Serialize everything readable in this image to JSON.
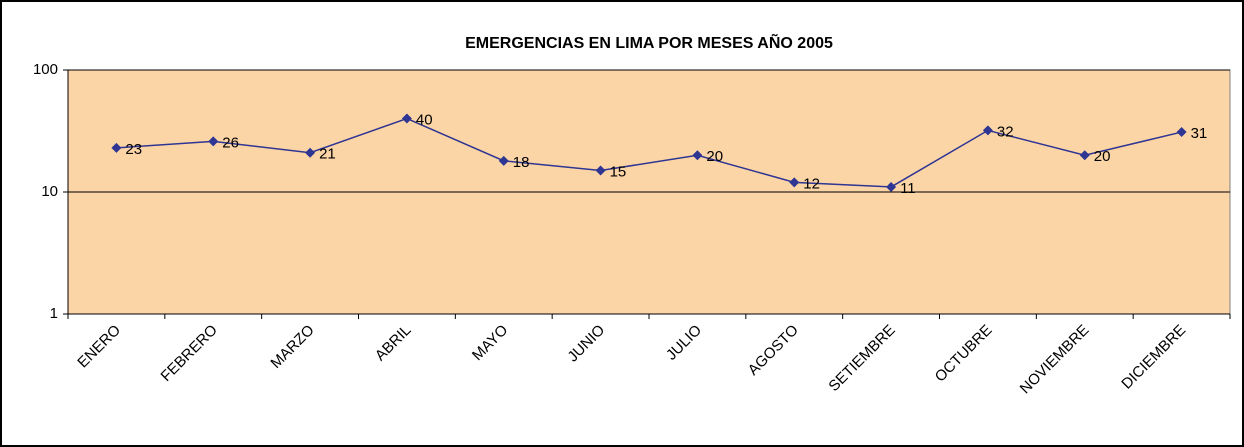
{
  "chart_data": {
    "type": "line",
    "title": "EMERGENCIAS EN LIMA POR MESES AÑO 2005",
    "categories": [
      "ENERO",
      "FEBRERO",
      "MARZO",
      "ABRIL",
      "MAYO",
      "JUNIO",
      "JULIO",
      "AGOSTO",
      "SETIEMBRE",
      "OCTUBRE",
      "NOVIEMBRE",
      "DICIEMBRE"
    ],
    "values": [
      23,
      26,
      21,
      40,
      18,
      15,
      20,
      12,
      11,
      32,
      20,
      31
    ],
    "color": "#2e3592",
    "plot_background": "#fcd5a7",
    "ylim": [
      1,
      100
    ],
    "yticks": [
      1,
      10,
      100
    ],
    "log_scale": true,
    "grid": true
  }
}
